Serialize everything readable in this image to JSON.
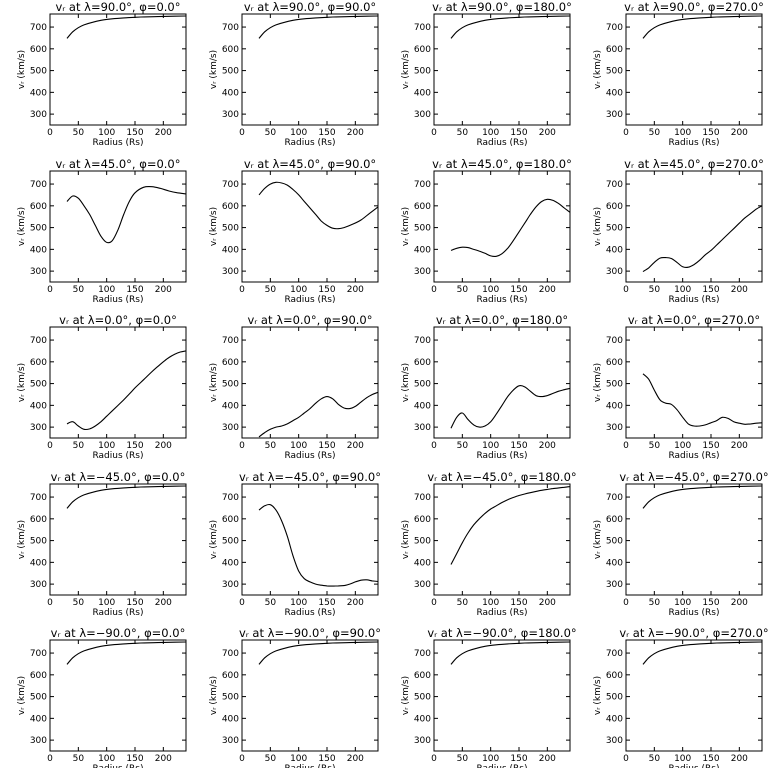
{
  "chart_data": {
    "type": "line",
    "xlabel": "Radius (Rs)",
    "ylabel": "vᵣ (km/s)",
    "xlim": [
      0,
      240
    ],
    "ylim": [
      250,
      760
    ],
    "xticks": [
      0,
      50,
      100,
      150,
      200
    ],
    "yticks": [
      300,
      400,
      500,
      600,
      700
    ],
    "grid": false,
    "panels": [
      {
        "title": "vᵣ at λ=90.0°, φ=0.0°",
        "x": [
          30,
          40,
          50,
          60,
          75,
          90,
          110,
          130,
          160,
          190,
          220,
          240
        ],
        "y": [
          648,
          678,
          697,
          710,
          722,
          731,
          738,
          742,
          746,
          748,
          750,
          751
        ]
      },
      {
        "title": "vᵣ at λ=90.0°, φ=90.0°",
        "x": [
          30,
          40,
          50,
          60,
          75,
          90,
          110,
          130,
          160,
          190,
          220,
          240
        ],
        "y": [
          648,
          678,
          697,
          710,
          722,
          731,
          738,
          742,
          746,
          748,
          750,
          751
        ]
      },
      {
        "title": "vᵣ at λ=90.0°, φ=180.0°",
        "x": [
          30,
          40,
          50,
          60,
          75,
          90,
          110,
          130,
          160,
          190,
          220,
          240
        ],
        "y": [
          648,
          678,
          697,
          710,
          722,
          731,
          738,
          742,
          746,
          748,
          750,
          751
        ]
      },
      {
        "title": "vᵣ at λ=90.0°, φ=270.0°",
        "x": [
          30,
          40,
          50,
          60,
          75,
          90,
          110,
          130,
          160,
          190,
          220,
          240
        ],
        "y": [
          648,
          678,
          697,
          710,
          722,
          731,
          738,
          742,
          746,
          748,
          750,
          751
        ]
      },
      {
        "title": "vᵣ at λ=45.0°, φ=0.0°",
        "x": [
          30,
          40,
          50,
          60,
          70,
          80,
          90,
          100,
          110,
          120,
          130,
          140,
          150,
          165,
          180,
          195,
          210,
          225,
          240
        ],
        "y": [
          620,
          645,
          635,
          600,
          560,
          510,
          460,
          432,
          440,
          490,
          560,
          620,
          660,
          685,
          688,
          680,
          668,
          660,
          655
        ]
      },
      {
        "title": "vᵣ at λ=45.0°, φ=90.0°",
        "x": [
          30,
          40,
          50,
          60,
          70,
          80,
          90,
          100,
          110,
          120,
          130,
          140,
          150,
          160,
          170,
          180,
          195,
          210,
          225,
          240
        ],
        "y": [
          650,
          680,
          700,
          708,
          705,
          695,
          675,
          650,
          620,
          590,
          560,
          530,
          510,
          497,
          495,
          500,
          515,
          535,
          565,
          595
        ]
      },
      {
        "title": "vᵣ at λ=45.0°, φ=180.0°",
        "x": [
          30,
          40,
          50,
          60,
          70,
          80,
          90,
          100,
          110,
          120,
          130,
          140,
          150,
          160,
          170,
          180,
          190,
          200,
          210,
          220,
          230,
          240
        ],
        "y": [
          395,
          405,
          410,
          408,
          400,
          392,
          382,
          370,
          368,
          380,
          405,
          440,
          480,
          520,
          560,
          595,
          620,
          630,
          625,
          610,
          590,
          570
        ]
      },
      {
        "title": "vᵣ at λ=45.0°, φ=270.0°",
        "x": [
          30,
          40,
          50,
          60,
          70,
          80,
          90,
          100,
          110,
          120,
          130,
          140,
          150,
          160,
          170,
          180,
          190,
          200,
          210,
          220,
          230,
          240
        ],
        "y": [
          298,
          315,
          340,
          360,
          362,
          358,
          340,
          320,
          318,
          330,
          350,
          375,
          395,
          420,
          445,
          470,
          495,
          520,
          545,
          565,
          585,
          600
        ]
      },
      {
        "title": "vᵣ at λ=0.0°, φ=0.0°",
        "x": [
          30,
          40,
          50,
          60,
          70,
          80,
          90,
          100,
          110,
          120,
          130,
          140,
          150,
          160,
          170,
          180,
          190,
          200,
          210,
          220,
          230,
          240
        ],
        "y": [
          315,
          325,
          305,
          290,
          292,
          305,
          325,
          350,
          375,
          400,
          425,
          452,
          480,
          505,
          530,
          555,
          578,
          600,
          620,
          635,
          645,
          650
        ]
      },
      {
        "title": "vᵣ at λ=0.0°, φ=90.0°",
        "x": [
          30,
          40,
          50,
          60,
          70,
          80,
          90,
          100,
          110,
          120,
          130,
          140,
          150,
          160,
          170,
          180,
          190,
          200,
          210,
          220,
          230,
          240
        ],
        "y": [
          255,
          275,
          290,
          300,
          305,
          315,
          330,
          345,
          365,
          385,
          410,
          430,
          440,
          430,
          405,
          388,
          385,
          395,
          415,
          435,
          450,
          460
        ]
      },
      {
        "title": "vᵣ at λ=0.0°, φ=180.0°",
        "x": [
          30,
          40,
          50,
          60,
          70,
          80,
          90,
          100,
          110,
          120,
          130,
          140,
          150,
          160,
          170,
          180,
          190,
          200,
          210,
          220,
          230,
          240
        ],
        "y": [
          295,
          345,
          365,
          335,
          310,
          300,
          305,
          325,
          360,
          400,
          440,
          470,
          490,
          485,
          465,
          445,
          440,
          445,
          455,
          465,
          472,
          478
        ]
      },
      {
        "title": "vᵣ at λ=0.0°, φ=270.0°",
        "x": [
          30,
          40,
          50,
          60,
          70,
          80,
          90,
          100,
          110,
          120,
          130,
          140,
          150,
          160,
          170,
          180,
          190,
          200,
          210,
          220,
          230,
          240
        ],
        "y": [
          545,
          520,
          470,
          425,
          410,
          405,
          380,
          345,
          315,
          305,
          305,
          310,
          320,
          330,
          345,
          340,
          325,
          318,
          313,
          315,
          318,
          320
        ]
      },
      {
        "title": "vᵣ at λ=−45.0°, φ=0.0°",
        "x": [
          30,
          40,
          50,
          60,
          75,
          90,
          110,
          130,
          160,
          190,
          220,
          240
        ],
        "y": [
          648,
          678,
          697,
          710,
          722,
          731,
          738,
          742,
          746,
          748,
          750,
          751
        ]
      },
      {
        "title": "vᵣ at λ=−45.0°, φ=90.0°",
        "x": [
          30,
          40,
          50,
          60,
          70,
          80,
          90,
          100,
          110,
          120,
          130,
          140,
          150,
          160,
          170,
          180,
          190,
          200,
          210,
          220,
          230,
          240
        ],
        "y": [
          640,
          660,
          665,
          640,
          590,
          520,
          430,
          360,
          325,
          310,
          300,
          295,
          292,
          291,
          292,
          293,
          300,
          310,
          318,
          320,
          315,
          312
        ]
      },
      {
        "title": "vᵣ at λ=−45.0°, φ=180.0°",
        "x": [
          30,
          40,
          50,
          60,
          70,
          80,
          90,
          100,
          110,
          120,
          130,
          140,
          150,
          160,
          170,
          180,
          190,
          200,
          210,
          220,
          230,
          240
        ],
        "y": [
          390,
          440,
          490,
          535,
          572,
          600,
          625,
          645,
          660,
          675,
          688,
          698,
          707,
          714,
          720,
          726,
          731,
          735,
          739,
          742,
          745,
          748
        ]
      },
      {
        "title": "vᵣ at λ=−45.0°, φ=270.0°",
        "x": [
          30,
          40,
          50,
          60,
          75,
          90,
          110,
          130,
          160,
          190,
          220,
          240
        ],
        "y": [
          648,
          678,
          697,
          710,
          722,
          731,
          738,
          742,
          746,
          748,
          750,
          751
        ]
      },
      {
        "title": "vᵣ at λ=−90.0°, φ=0.0°",
        "x": [
          30,
          40,
          50,
          60,
          75,
          90,
          110,
          130,
          160,
          190,
          220,
          240
        ],
        "y": [
          648,
          678,
          697,
          710,
          722,
          731,
          738,
          742,
          746,
          748,
          750,
          751
        ]
      },
      {
        "title": "vᵣ at λ=−90.0°, φ=90.0°",
        "x": [
          30,
          40,
          50,
          60,
          75,
          90,
          110,
          130,
          160,
          190,
          220,
          240
        ],
        "y": [
          648,
          678,
          697,
          710,
          722,
          731,
          738,
          742,
          746,
          748,
          750,
          751
        ]
      },
      {
        "title": "vᵣ at λ=−90.0°, φ=180.0°",
        "x": [
          30,
          40,
          50,
          60,
          75,
          90,
          110,
          130,
          160,
          190,
          220,
          240
        ],
        "y": [
          648,
          678,
          697,
          710,
          722,
          731,
          738,
          742,
          746,
          748,
          750,
          751
        ]
      },
      {
        "title": "vᵣ at λ=−90.0°, φ=270.0°",
        "x": [
          30,
          40,
          50,
          60,
          75,
          90,
          110,
          130,
          160,
          190,
          220,
          240
        ],
        "y": [
          648,
          678,
          697,
          710,
          722,
          731,
          738,
          742,
          746,
          748,
          750,
          751
        ]
      }
    ]
  }
}
